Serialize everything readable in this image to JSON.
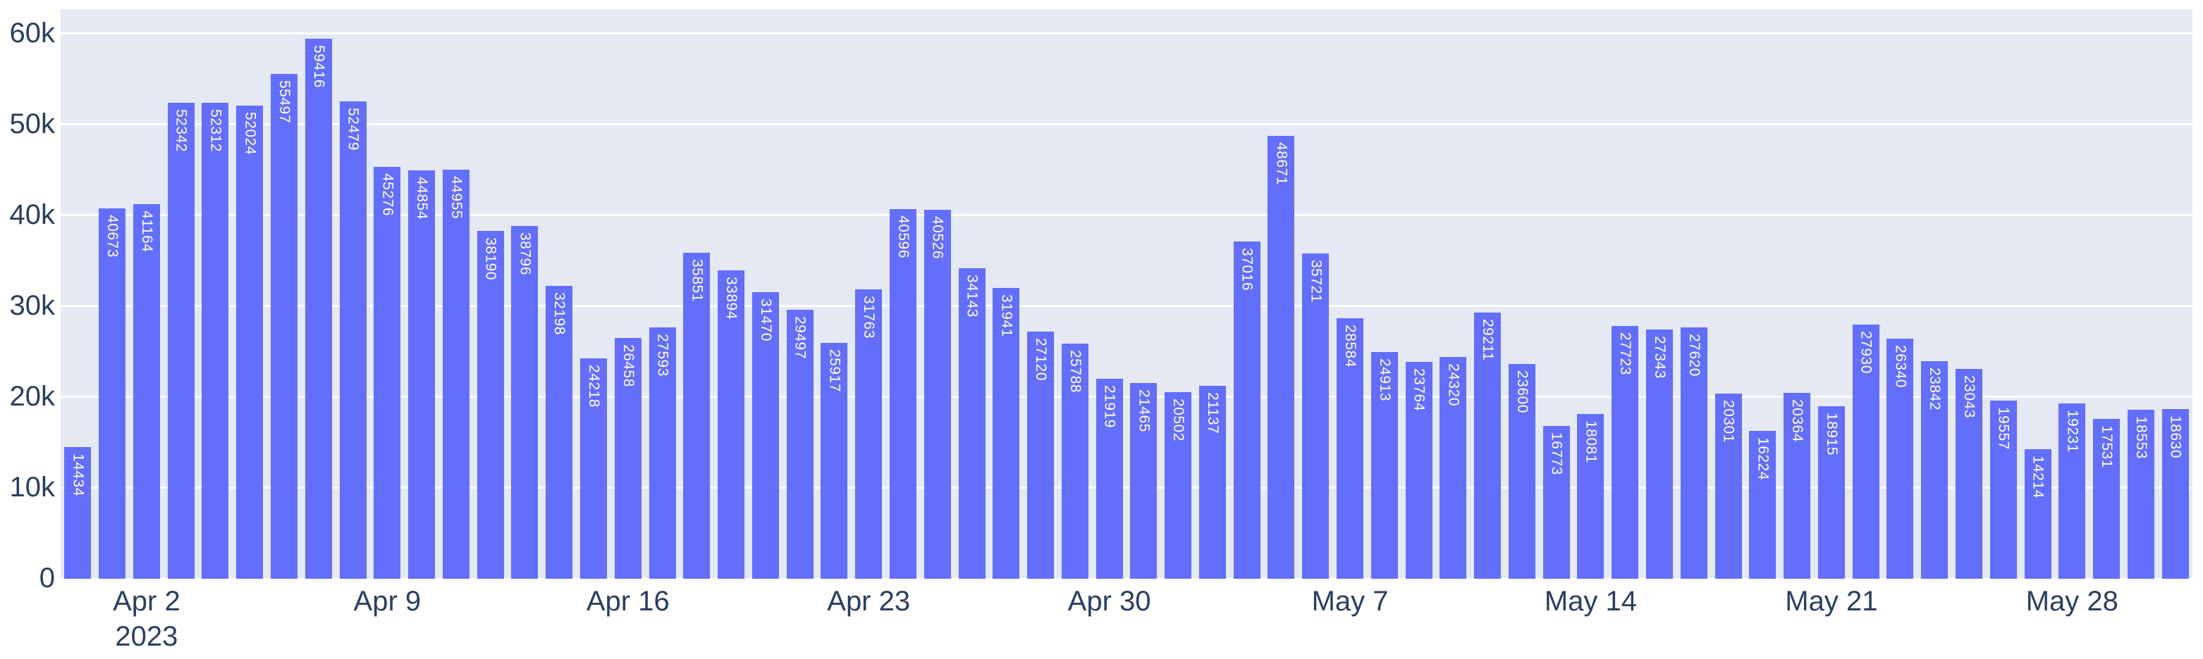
{
  "chart_data": {
    "type": "bar",
    "title": "",
    "xlabel": "",
    "ylabel": "",
    "legend": null,
    "grid": true,
    "ylim": [
      0,
      62630
    ],
    "x": [
      "2023-03-31",
      "2023-04-01",
      "2023-04-02",
      "2023-04-03",
      "2023-04-04",
      "2023-04-05",
      "2023-04-06",
      "2023-04-07",
      "2023-04-08",
      "2023-04-09",
      "2023-04-10",
      "2023-04-11",
      "2023-04-12",
      "2023-04-13",
      "2023-04-14",
      "2023-04-15",
      "2023-04-16",
      "2023-04-17",
      "2023-04-18",
      "2023-04-19",
      "2023-04-20",
      "2023-04-21",
      "2023-04-22",
      "2023-04-23",
      "2023-04-24",
      "2023-04-25",
      "2023-04-26",
      "2023-04-27",
      "2023-04-28",
      "2023-04-29",
      "2023-04-30",
      "2023-05-01",
      "2023-05-02",
      "2023-05-03",
      "2023-05-04",
      "2023-05-05",
      "2023-05-06",
      "2023-05-07",
      "2023-05-08",
      "2023-05-09",
      "2023-05-10",
      "2023-05-11",
      "2023-05-12",
      "2023-05-13",
      "2023-05-14",
      "2023-05-15",
      "2023-05-16",
      "2023-05-17",
      "2023-05-18",
      "2023-05-19",
      "2023-05-20",
      "2023-05-21",
      "2023-05-22",
      "2023-05-23",
      "2023-05-24",
      "2023-05-25",
      "2023-05-26",
      "2023-05-27",
      "2023-05-28",
      "2023-05-29",
      "2023-05-30",
      "2023-05-31"
    ],
    "values": [
      14434,
      40673,
      41164,
      52342,
      52312,
      52024,
      55497,
      59416,
      52479,
      45276,
      44854,
      44955,
      38190,
      38796,
      32198,
      24218,
      26458,
      27593,
      35851,
      33894,
      31470,
      29497,
      25917,
      31763,
      40596,
      40526,
      34143,
      31941,
      27120,
      25788,
      21919,
      21465,
      20502,
      21137,
      37016,
      48671,
      35721,
      28584,
      24913,
      23764,
      24320,
      29211,
      23600,
      16773,
      18081,
      27723,
      27343,
      27620,
      20301,
      16224,
      20364,
      18915,
      27930,
      26340,
      23842,
      23043,
      19557,
      14214,
      19231,
      17531,
      18553,
      18630
    ],
    "y_ticks": [
      {
        "value": 0,
        "label": "0"
      },
      {
        "value": 10000,
        "label": "10k"
      },
      {
        "value": 20000,
        "label": "20k"
      },
      {
        "value": 30000,
        "label": "30k"
      },
      {
        "value": 40000,
        "label": "40k"
      },
      {
        "value": 50000,
        "label": "50k"
      },
      {
        "value": 60000,
        "label": "60k"
      }
    ],
    "x_ticks": [
      {
        "bar_index": 2,
        "label": "Apr 2",
        "sub_label": "2023"
      },
      {
        "bar_index": 9,
        "label": "Apr 9",
        "sub_label": ""
      },
      {
        "bar_index": 16,
        "label": "Apr 16",
        "sub_label": ""
      },
      {
        "bar_index": 23,
        "label": "Apr 23",
        "sub_label": ""
      },
      {
        "bar_index": 30,
        "label": "Apr 30",
        "sub_label": ""
      },
      {
        "bar_index": 37,
        "label": "May 7",
        "sub_label": ""
      },
      {
        "bar_index": 44,
        "label": "May 14",
        "sub_label": ""
      },
      {
        "bar_index": 51,
        "label": "May 21",
        "sub_label": ""
      },
      {
        "bar_index": 58,
        "label": "May 28",
        "sub_label": ""
      }
    ],
    "colors": {
      "bar_fill": "#636EFA",
      "plot_background": "#E5E9F4",
      "gridline": "#FFFFFF",
      "tick_text": "#2A3F5F",
      "bar_label_text": "#FFFFFF",
      "page_background": "#FFFFFF"
    }
  }
}
